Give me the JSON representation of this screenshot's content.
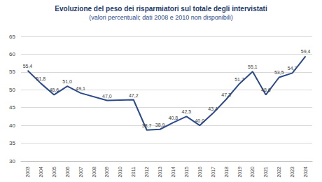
{
  "chart_data": {
    "type": "line",
    "title": "Evoluzione del peso dei risparmiatori sul totale degli intervistati",
    "subtitle": "(valori percentuali; dati 2008 e 2010 non disponibili)",
    "categories": [
      "2003",
      "2004",
      "2005",
      "2006",
      "2007",
      "2008",
      "2009",
      "2010",
      "2011",
      "2012",
      "2013",
      "2014",
      "2015",
      "2016",
      "2017",
      "2018",
      "2019",
      "2020",
      "2021",
      "2022",
      "2023",
      "2024"
    ],
    "values": [
      55.4,
      51.8,
      48.6,
      51.0,
      49.1,
      null,
      47.0,
      null,
      47.2,
      38.7,
      38.9,
      40.8,
      42.5,
      40.0,
      43.4,
      47.3,
      51.7,
      55.1,
      48.6,
      53.5,
      54.7,
      59.4
    ],
    "value_labels": [
      "55,4",
      "51,8",
      "48,6",
      "51,0",
      "49,1",
      null,
      "47,0",
      null,
      "47,2",
      "38,7",
      "38,9",
      "40,8",
      "42,5",
      "40,0",
      "43,4",
      "47,3",
      "51,7",
      "55,1",
      "48,6",
      "53,5",
      "54,7",
      "59,4"
    ],
    "color": "#2b4a8b",
    "ylim": [
      30,
      65
    ],
    "yticks": [
      30,
      35,
      40,
      45,
      50,
      55,
      60,
      65
    ],
    "grid": true,
    "data_labels": true
  }
}
